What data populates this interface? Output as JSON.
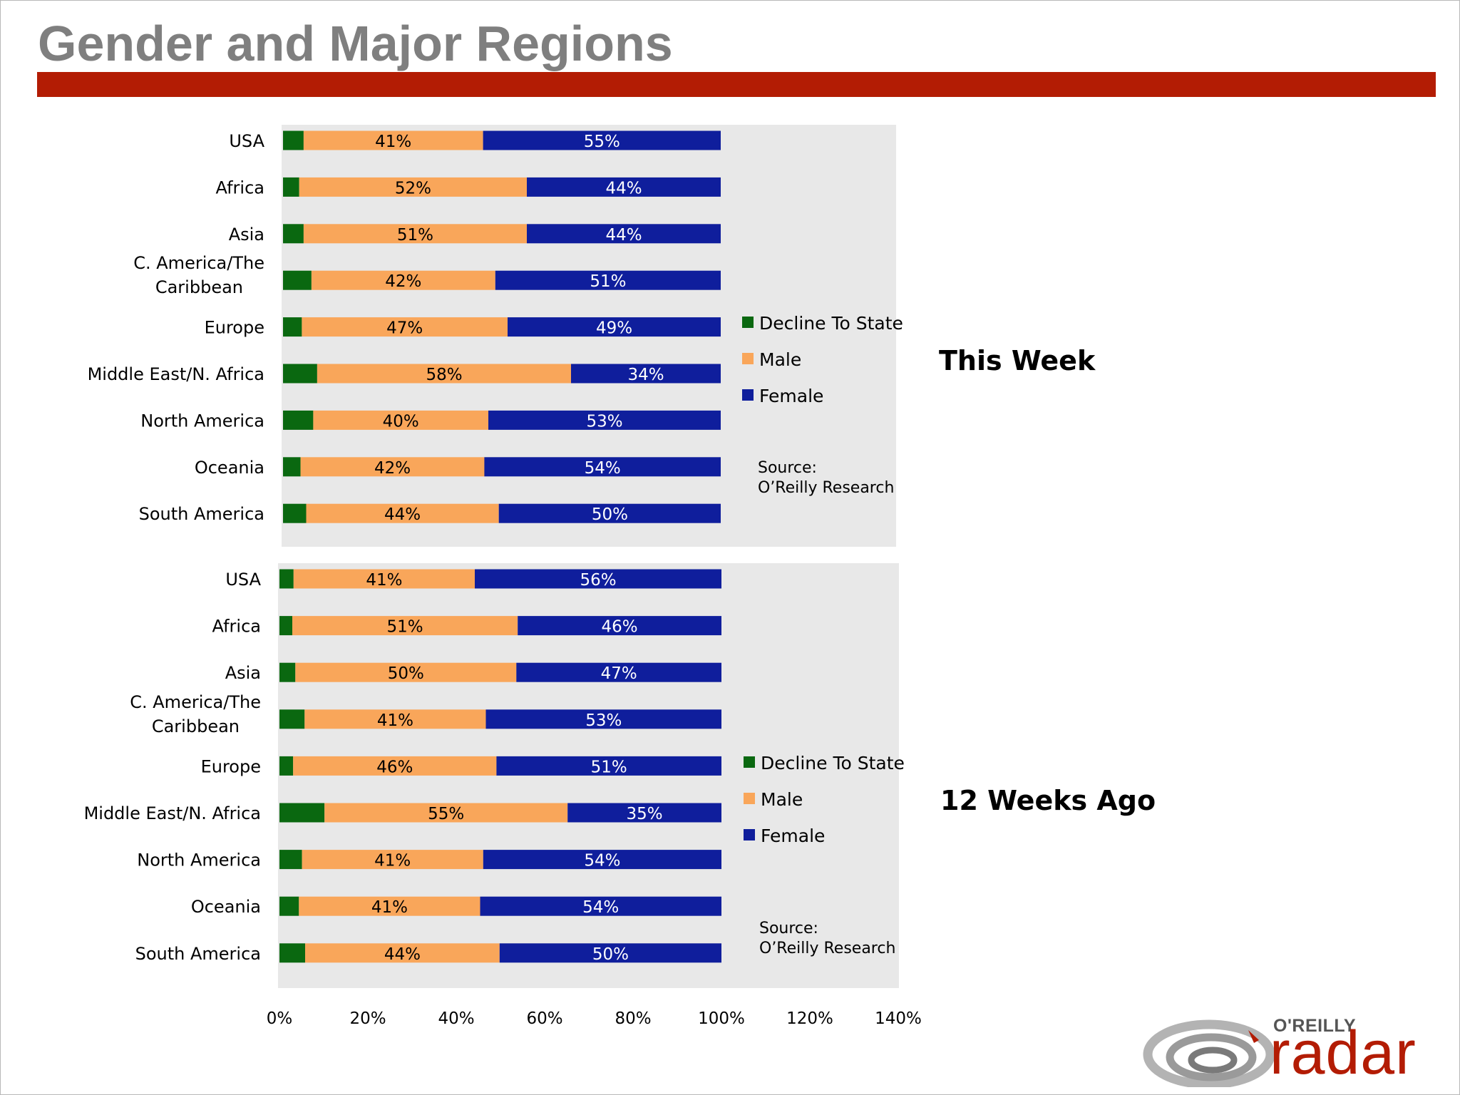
{
  "slide": {
    "title": "Gender and Major Regions",
    "colors": {
      "title": "#7f7f7f",
      "bar": "#b31c04",
      "panel": "#e8e8e8"
    }
  },
  "logo": {
    "brand": "O'REILLY",
    "word": "radar",
    "color": "#b31c04"
  },
  "chart_data": [
    {
      "type": "bar",
      "orientation": "horizontal",
      "stacked": true,
      "title": "This Week",
      "categories": [
        "USA",
        "Africa",
        "Asia",
        "C. America/The Caribbean",
        "Europe",
        "Middle East/N. Africa",
        "North America",
        "Oceania",
        "South America"
      ],
      "series": [
        {
          "name": "Decline To State",
          "color": "#0a6810",
          "values": [
            4.7,
            3.7,
            4.7,
            6.5,
            4.3,
            7.8,
            6.9,
            4.0,
            5.3
          ]
        },
        {
          "name": "Male",
          "color": "#f9a65a",
          "values": [
            41,
            52,
            51,
            42,
            47,
            58,
            40,
            42,
            44
          ]
        },
        {
          "name": "Female",
          "color": "#0f1e9c",
          "values": [
            55,
            44,
            44,
            51,
            49,
            34,
            53,
            54,
            50
          ]
        }
      ],
      "data_labels": {
        "Male": [
          "41%",
          "52%",
          "51%",
          "42%",
          "47%",
          "58%",
          "40%",
          "42%",
          "44%"
        ],
        "Female": [
          "55%",
          "44%",
          "44%",
          "51%",
          "49%",
          "34%",
          "53%",
          "54%",
          "50%"
        ]
      },
      "legend_position": "right",
      "source": [
        "Source:",
        "O’Reilly Research"
      ]
    },
    {
      "type": "bar",
      "orientation": "horizontal",
      "stacked": true,
      "title": "12 Weeks Ago",
      "categories": [
        "USA",
        "Africa",
        "Asia",
        "C. America/The Caribbean",
        "Europe",
        "Middle East/N. Africa",
        "North America",
        "Oceania",
        "South America"
      ],
      "series": [
        {
          "name": "Decline To State",
          "color": "#0a6810",
          "values": [
            3.2,
            2.9,
            3.6,
            5.7,
            3.1,
            10.2,
            5.1,
            4.4,
            5.8
          ]
        },
        {
          "name": "Male",
          "color": "#f9a65a",
          "values": [
            41,
            51,
            50,
            41,
            46,
            55,
            41,
            41,
            44
          ]
        },
        {
          "name": "Female",
          "color": "#0f1e9c",
          "values": [
            56,
            46,
            47,
            53,
            51,
            35,
            54,
            54,
            50
          ]
        }
      ],
      "data_labels": {
        "Male": [
          "41%",
          "51%",
          "50%",
          "41%",
          "46%",
          "55%",
          "41%",
          "41%",
          "44%"
        ],
        "Female": [
          "56%",
          "46%",
          "47%",
          "53%",
          "51%",
          "35%",
          "54%",
          "54%",
          "50%"
        ]
      },
      "legend_position": "right",
      "source": [
        "Source:",
        "O’Reilly Research"
      ]
    }
  ],
  "x_axis": {
    "ticks": [
      0,
      20,
      40,
      60,
      80,
      100,
      120,
      140
    ],
    "tick_labels": [
      "0%",
      "20%",
      "40%",
      "60%",
      "80%",
      "100%",
      "120%",
      "140%"
    ],
    "xlim": [
      0,
      140
    ]
  }
}
